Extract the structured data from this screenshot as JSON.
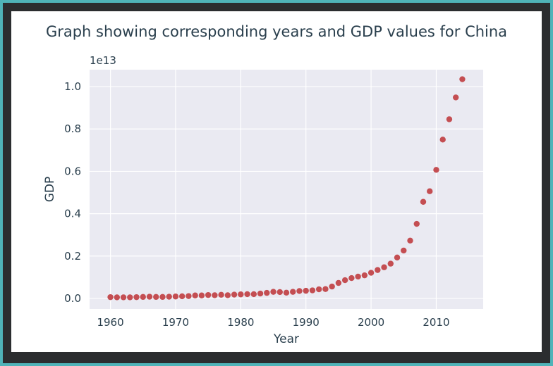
{
  "chart_data": {
    "type": "scatter",
    "title": "Graph showing corresponding years and GDP values for China",
    "xlabel": "Year",
    "ylabel": "GDP",
    "offset_label": "1e13",
    "xlim": [
      1956.8,
      2017.2
    ],
    "ylim": [
      -0.05,
      1.08
    ],
    "xticks": [
      1960,
      1970,
      1980,
      1990,
      2000,
      2010
    ],
    "yticks": [
      0.0,
      0.2,
      0.4,
      0.6,
      0.8,
      1.0
    ],
    "ytick_labels": [
      "0.0",
      "0.2",
      "0.4",
      "0.6",
      "0.8",
      "1.0"
    ],
    "y_units_multiplier": 10000000000000.0,
    "grid": true,
    "point_color": "#c44e52",
    "background_color": "#eaeaf2",
    "x": [
      1960,
      1961,
      1962,
      1963,
      1964,
      1965,
      1966,
      1967,
      1968,
      1969,
      1970,
      1971,
      1972,
      1973,
      1974,
      1975,
      1976,
      1977,
      1978,
      1979,
      1980,
      1981,
      1982,
      1983,
      1984,
      1985,
      1986,
      1987,
      1988,
      1989,
      1990,
      1991,
      1992,
      1993,
      1994,
      1995,
      1996,
      1997,
      1998,
      1999,
      2000,
      2001,
      2002,
      2003,
      2004,
      2005,
      2006,
      2007,
      2008,
      2009,
      2010,
      2011,
      2012,
      2013,
      2014
    ],
    "y": [
      0.006,
      0.005,
      0.005,
      0.005,
      0.006,
      0.007,
      0.008,
      0.007,
      0.007,
      0.008,
      0.009,
      0.01,
      0.011,
      0.014,
      0.014,
      0.016,
      0.015,
      0.017,
      0.015,
      0.018,
      0.019,
      0.02,
      0.02,
      0.023,
      0.026,
      0.031,
      0.03,
      0.027,
      0.031,
      0.035,
      0.036,
      0.038,
      0.043,
      0.044,
      0.056,
      0.073,
      0.086,
      0.096,
      0.103,
      0.109,
      0.121,
      0.134,
      0.147,
      0.164,
      0.193,
      0.226,
      0.273,
      0.352,
      0.456,
      0.506,
      0.607,
      0.75,
      0.846,
      0.949,
      1.035
    ]
  }
}
